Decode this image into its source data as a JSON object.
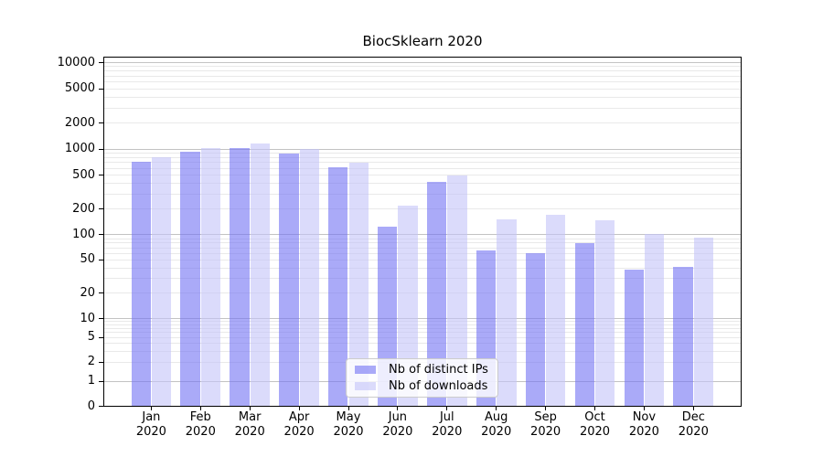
{
  "chart_data": {
    "type": "bar",
    "title": "BiocSklearn 2020",
    "xlabel": "",
    "ylabel": "",
    "yscale": "symlog",
    "ylim": [
      0,
      12000
    ],
    "grid": true,
    "legend_position": "lower center",
    "categories": [
      "Jan 2020",
      "Feb 2020",
      "Mar 2020",
      "Apr 2020",
      "May 2020",
      "Jun 2020",
      "Jul 2020",
      "Aug 2020",
      "Sep 2020",
      "Oct 2020",
      "Nov 2020",
      "Dec 2020"
    ],
    "y_ticks": [
      10000,
      5000,
      2000,
      1000,
      500,
      200,
      100,
      50,
      20,
      10,
      5,
      2,
      1,
      0
    ],
    "series": [
      {
        "name": "Nb of distinct IPs",
        "color": "#7171f4",
        "alpha": 0.6,
        "values": [
          710,
          940,
          1025,
          890,
          615,
          125,
          420,
          65,
          60,
          80,
          38,
          41
        ]
      },
      {
        "name": "Nb of downloads",
        "color": "#c3c3f8",
        "alpha": 0.6,
        "values": [
          815,
          1040,
          1160,
          1010,
          690,
          220,
          500,
          152,
          170,
          147,
          102,
          92
        ]
      }
    ],
    "grid_color_major": "#c3c3c3",
    "grid_color_minor": "#e9e9e9"
  }
}
